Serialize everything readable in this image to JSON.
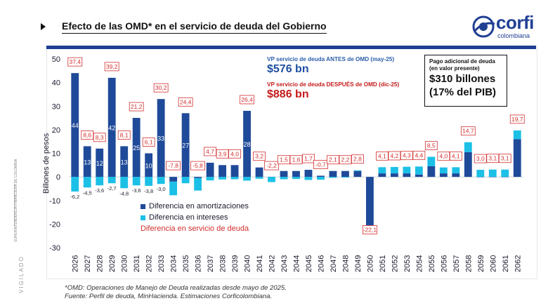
{
  "header": {
    "title": "Efecto de las OMD* en el servicio de deuda del Gobierno",
    "logo_word": "corfi",
    "logo_sub": "colombiana"
  },
  "sidebar": {
    "regulator": "SUPERINTENDENCIA FINANCIERA DE COLOMBIA",
    "vigilado": "VIGILADO"
  },
  "annotations": {
    "before_label": "VP servicio de deuda ANTES de OMD (may-25)",
    "before_value": "$576 bn",
    "after_label": "VP servicio de deuda DESPUÉS de OMD (dic-25)",
    "after_value": "$886 bn",
    "box_label": "Pago adicional de deuda (en valor presente)",
    "box_value": "$310 billones",
    "box_sub": "(17% del PIB)"
  },
  "colors": {
    "amortizaciones": "#1f4a99",
    "intereses": "#1cc0e6",
    "servicio": "#d32f2f",
    "brand": "#1f3f93"
  },
  "chart_data": {
    "type": "bar",
    "stacked": true,
    "ylabel": "Billones de pesos",
    "ylim": [
      -30,
      50
    ],
    "yticks": [
      -30,
      -20,
      -10,
      0,
      10,
      20,
      30,
      40,
      50
    ],
    "categories": [
      "2026",
      "2027",
      "2028",
      "2029",
      "2030",
      "2031",
      "2032",
      "2033",
      "2034",
      "2035",
      "2036",
      "2037",
      "2038",
      "2039",
      "2040",
      "2041",
      "2042",
      "2043",
      "2044",
      "2045",
      "2046",
      "2047",
      "2048",
      "2049",
      "2050",
      "2051",
      "2052",
      "2053",
      "2054",
      "2055",
      "2056",
      "2057",
      "2058",
      "2059",
      "2060",
      "2061",
      "2062"
    ],
    "series": [
      {
        "name": "Diferencia en amortizaciones",
        "values": [
          44,
          13,
          12,
          42,
          13,
          25,
          10,
          33,
          -2,
          27,
          -0.5,
          6,
          5,
          5,
          28,
          4,
          0,
          2.5,
          2.5,
          3,
          0.5,
          2.5,
          2.5,
          2.5,
          -21,
          1.5,
          1.5,
          1.5,
          1,
          4.5,
          1.5,
          1.5,
          10.5,
          0,
          0,
          0,
          16
        ]
      },
      {
        "name": "Diferencia en intereses",
        "values": [
          -6.2,
          -4.5,
          -3.6,
          -2.7,
          -4.8,
          -3.6,
          -3.8,
          -3,
          -5.8,
          -2.7,
          -5.3,
          -1.5,
          -1.1,
          -1,
          -1.6,
          -0.8,
          -2.2,
          -1,
          -0.9,
          -1.3,
          -1.2,
          -0.4,
          -0.3,
          0.3,
          -1.1,
          2.6,
          2.7,
          2.8,
          3.4,
          4,
          2.5,
          2.6,
          4.2,
          3,
          3.1,
          3.1,
          3.7
        ]
      }
    ],
    "totals": [
      "37,4",
      "8,6",
      "8,3",
      "39,2",
      "8,1",
      "21,2",
      "6,1",
      "30,2",
      "-7,8",
      "24,4",
      "-5,8",
      "4,7",
      "3,9",
      "4,0",
      "26,4",
      "3,2",
      "-2,2",
      "1,5",
      "1,6",
      "1,7",
      "-0,7",
      "2,1",
      "2,2",
      "2,8",
      "-22,1",
      "4,1",
      "4,2",
      "4,3",
      "4,4",
      "8,5",
      "4,0",
      "4,1",
      "14,7",
      "3,0",
      "3,1",
      "3,1",
      "19,7"
    ],
    "amort_labels": [
      "44",
      "13",
      "12",
      "42",
      "13",
      "25",
      "10",
      "33",
      "",
      "27",
      "",
      "",
      "",
      "",
      "28",
      "",
      "",
      "",
      "",
      "",
      "",
      "",
      "",
      "",
      "",
      "",
      "",
      "",
      "",
      "",
      "",
      "",
      "",
      "",
      "",
      "",
      ""
    ],
    "interest_labels": [
      "-6,2",
      "-4,5",
      "-3,6",
      "-2,7",
      "-4,8",
      "-3,6",
      "-3,8",
      "-3,0",
      "",
      "",
      "",
      "",
      "",
      "",
      "",
      "",
      "",
      "",
      "",
      "",
      "",
      "",
      "",
      "",
      "",
      "",
      "",
      "",
      "",
      "",
      "",
      "",
      "",
      "",
      "",
      "",
      ""
    ],
    "legend": [
      {
        "label": "Diferencia en amortizaciones",
        "color_key": "amortizaciones"
      },
      {
        "label": "Diferencia en intereses",
        "color_key": "intereses"
      },
      {
        "label": "Diferencia en servicio de deuda",
        "color_key": "servicio"
      }
    ]
  },
  "footer": {
    "note": "*OMD: Operaciones de Manejo de Deuda realizadas desde mayo de 2025.",
    "source": "Fuente: Perfil de deuda, MinHacienda. Estimaciones Corficolombiana."
  }
}
